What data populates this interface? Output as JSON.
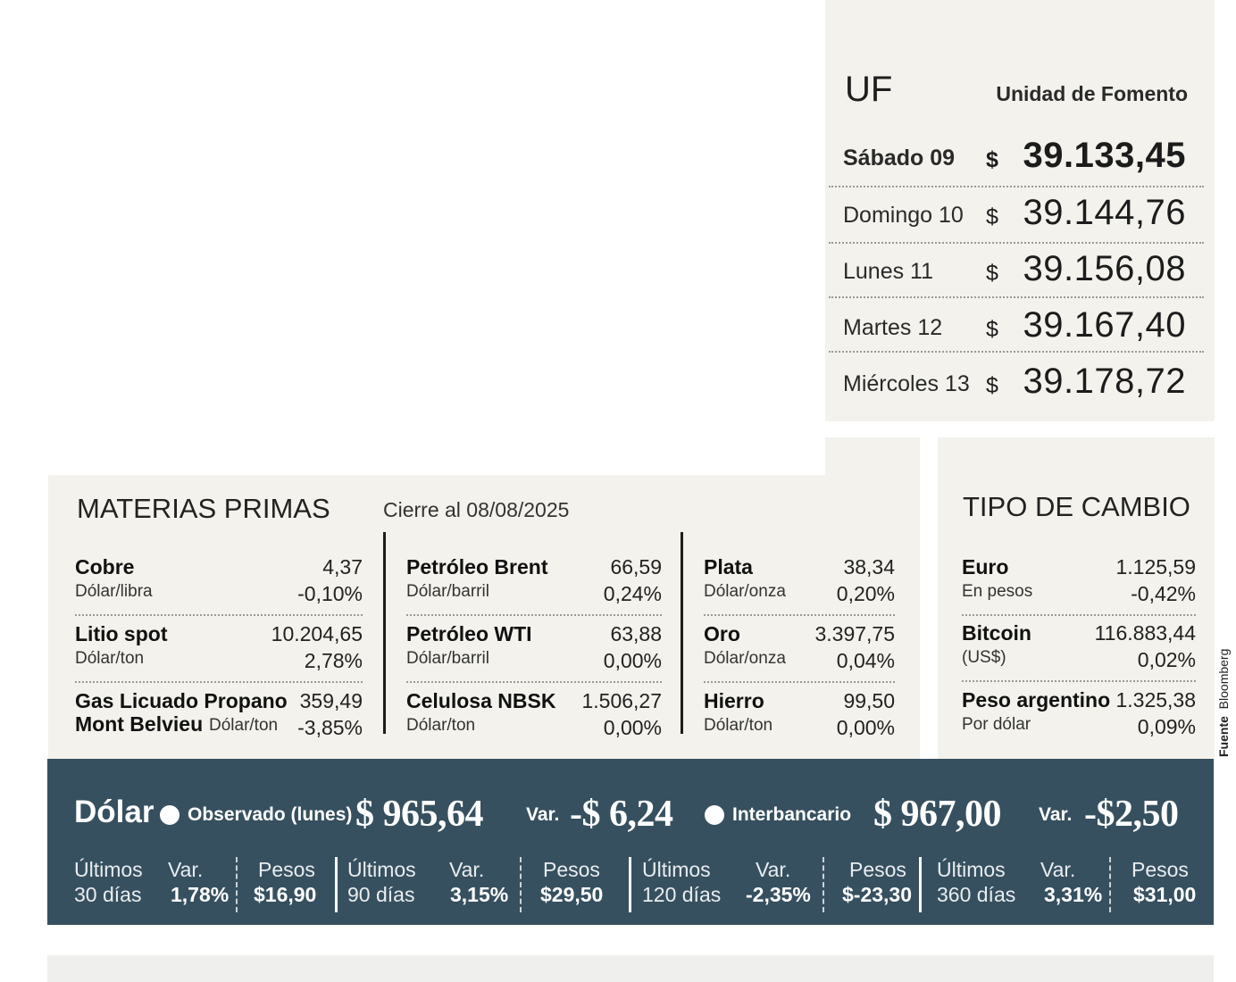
{
  "uf": {
    "title": "UF",
    "subtitle": "Unidad de Fomento",
    "currency": "$",
    "rows": [
      {
        "day": "Sábado 09",
        "value": "39.133,45"
      },
      {
        "day": "Domingo 10",
        "value": "39.144,76"
      },
      {
        "day": "Lunes 11",
        "value": "39.156,08"
      },
      {
        "day": "Martes 12",
        "value": "39.167,40"
      },
      {
        "day": "Miércoles 13",
        "value": "39.178,72"
      }
    ]
  },
  "materias_primas": {
    "title": "MATERIAS PRIMAS",
    "close": "Cierre al 08/08/2025",
    "items": [
      {
        "name": "Cobre",
        "unit": "Dólar/libra",
        "price": "4,37",
        "var": "-0,10%"
      },
      {
        "name": "Litio spot",
        "unit": "Dólar/ton",
        "price": "10.204,65",
        "var": "2,78%"
      },
      {
        "name": "Gas Licuado Propano",
        "name2": "Mont Belvieu",
        "unit": "Dólar/ton",
        "price": "359,49",
        "var": "-3,85%"
      },
      {
        "name": "Petróleo Brent",
        "unit": "Dólar/barril",
        "price": "66,59",
        "var": "0,24%"
      },
      {
        "name": "Petróleo WTI",
        "unit": "Dólar/barril",
        "price": "63,88",
        "var": "0,00%"
      },
      {
        "name": "Celulosa NBSK",
        "unit": "Dólar/ton",
        "price": "1.506,27",
        "var": "0,00%"
      },
      {
        "name": "Plata",
        "unit": "Dólar/onza",
        "price": "38,34",
        "var": "0,20%"
      },
      {
        "name": "Oro",
        "unit": "Dólar/onza",
        "price": "3.397,75",
        "var": "0,04%"
      },
      {
        "name": "Hierro",
        "unit": "Dólar/ton",
        "price": "99,50",
        "var": "0,00%"
      }
    ]
  },
  "tipo_cambio": {
    "title": "TIPO DE CAMBIO",
    "items": [
      {
        "name": "Euro",
        "unit": "En pesos",
        "price": "1.125,59",
        "var": "-0,42%"
      },
      {
        "name": "Bitcoin",
        "unit": "(US$)",
        "price": "116.883,44",
        "var": "0,02%"
      },
      {
        "name": "Peso argentino",
        "unit": "Por dólar",
        "price": "1.325,38",
        "var": "0,09%"
      }
    ]
  },
  "source": {
    "label": "Fuente",
    "name": "Bloomberg"
  },
  "dolar": {
    "label": "Dólar",
    "observado_label": "Observado (lunes)",
    "observado_value": "$ 965,64",
    "var_label": "Var.",
    "observado_var": "-$ 6,24",
    "interbancario_label": "Interbancario",
    "interbancario_value": "$ 967,00",
    "interbancario_var": "-$2,50",
    "periods": [
      {
        "l1": "Últimos",
        "l2": "30 días",
        "var_label": "Var.",
        "var": "1,78%",
        "pesos_label": "Pesos",
        "pesos": "$16,90"
      },
      {
        "l1": "Últimos",
        "l2": "90 días",
        "var_label": "Var.",
        "var": "3,15%",
        "pesos_label": "Pesos",
        "pesos": "$29,50"
      },
      {
        "l1": "Últimos",
        "l2": "120 días",
        "var_label": "Var.",
        "var": "-2,35%",
        "pesos_label": "Pesos",
        "pesos": "$-23,30"
      },
      {
        "l1": "Últimos",
        "l2": "360 días",
        "var_label": "Var.",
        "var": "3,31%",
        "pesos_label": "Pesos",
        "pesos": "$31,00"
      }
    ]
  }
}
